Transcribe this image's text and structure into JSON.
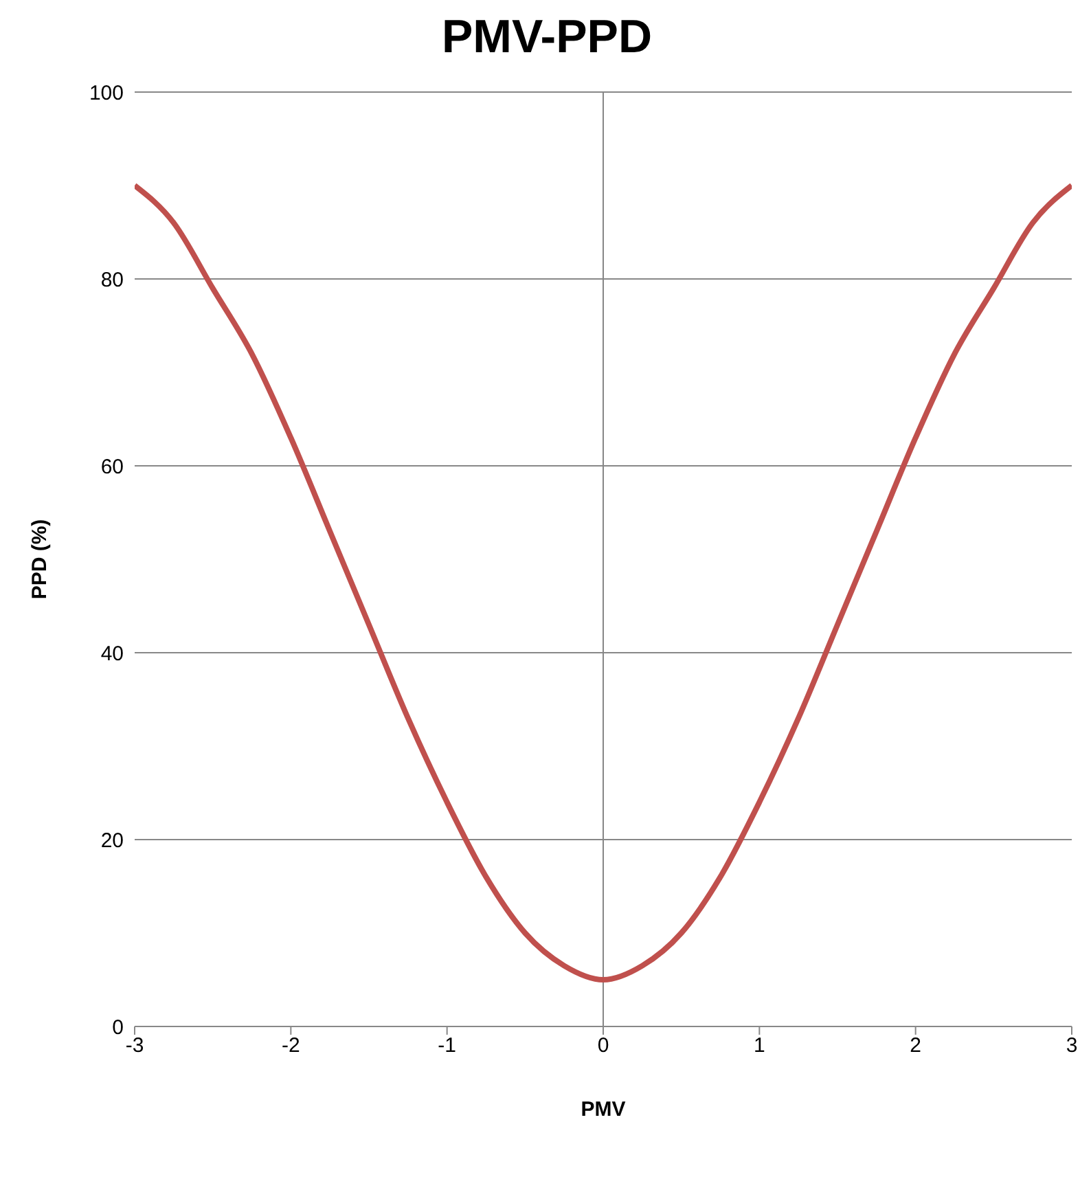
{
  "chart_data": {
    "type": "line",
    "title": "PMV-PPD",
    "xlabel": "PMV",
    "ylabel": "PPD (%)",
    "x": [
      -3,
      -2.75,
      -2.5,
      -2.25,
      -2,
      -1.75,
      -1.5,
      -1.25,
      -1,
      -0.75,
      -0.5,
      -0.25,
      0,
      0.25,
      0.5,
      0.75,
      1,
      1.25,
      1.5,
      1.75,
      2,
      2.25,
      2.5,
      2.75,
      3
    ],
    "series": [
      {
        "color": "#c0504d",
        "values": [
          90,
          86,
          79,
          72,
          63,
          53,
          43,
          33,
          24,
          16,
          10,
          6.5,
          5,
          6.5,
          10,
          16,
          24,
          33,
          43,
          53,
          63,
          72,
          79,
          86,
          90
        ]
      }
    ],
    "xlim": [
      -3,
      3
    ],
    "xticks": [
      -3,
      -2,
      -1,
      0,
      1,
      2,
      3
    ],
    "ylim": [
      0,
      100
    ],
    "yticks": [
      0,
      20,
      40,
      60,
      80,
      100
    ],
    "grid": "y",
    "ref_lines": [
      {
        "axis": "x",
        "value": 0,
        "color": "#868686"
      }
    ],
    "marker": "none",
    "line_style": "solid"
  }
}
